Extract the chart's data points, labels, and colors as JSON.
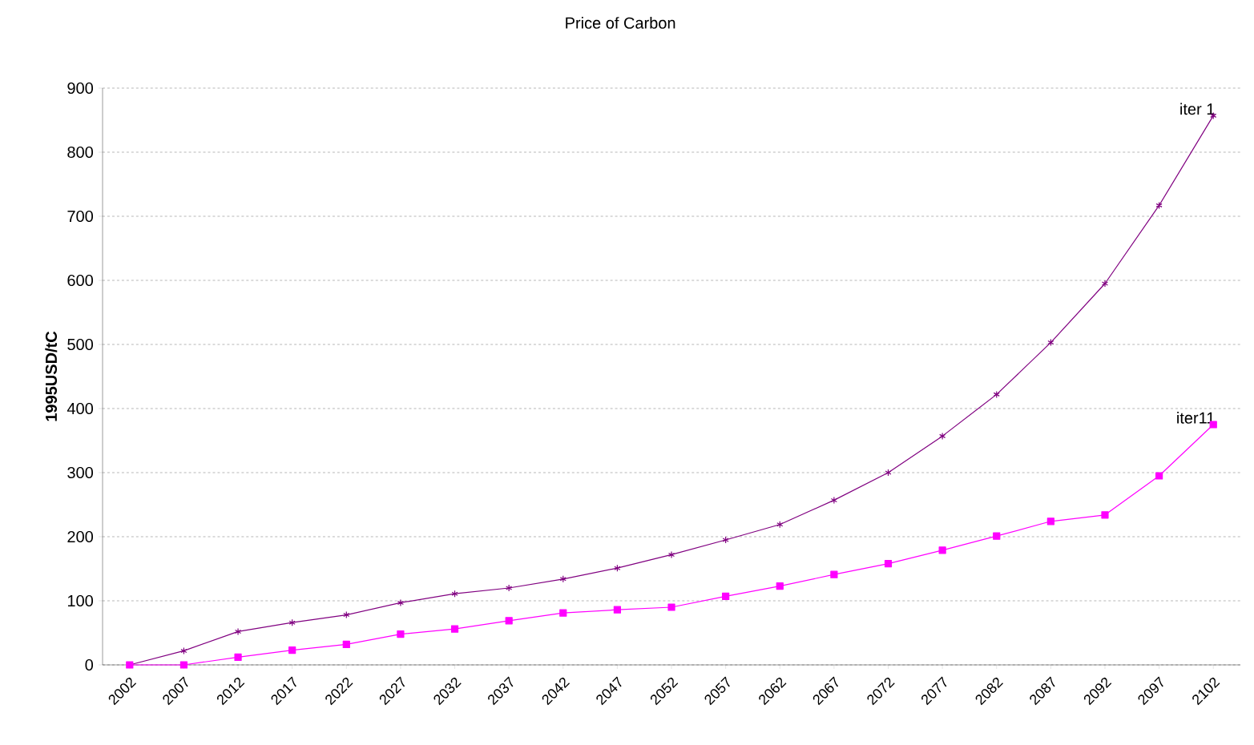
{
  "chart_data": {
    "type": "line",
    "title": "Price of Carbon",
    "ylabel": "**1995USD/tC**",
    "categories": [
      "2002",
      "2007",
      "2012",
      "2017",
      "2022",
      "2027",
      "2032",
      "2037",
      "2042",
      "2047",
      "2052",
      "2057",
      "2062",
      "2067",
      "2072",
      "2077",
      "2082",
      "2087",
      "2092",
      "2097",
      "2102"
    ],
    "series": [
      {
        "name": "iter 1",
        "color": "#800080",
        "marker": "cross",
        "values": [
          0,
          22,
          52,
          66,
          78,
          97,
          111,
          120,
          134,
          151,
          172,
          195,
          219,
          257,
          300,
          357,
          422,
          503,
          595,
          717,
          857
        ]
      },
      {
        "name": "iter11",
        "color": "#ff00ff",
        "marker": "square",
        "values": [
          0,
          0,
          12,
          23,
          32,
          48,
          56,
          69,
          81,
          86,
          90,
          107,
          123,
          141,
          158,
          179,
          201,
          224,
          234,
          295,
          375
        ]
      }
    ],
    "ylim": [
      0,
      900
    ],
    "yticks": [
      0,
      100,
      200,
      300,
      400,
      500,
      600,
      700,
      800,
      900
    ],
    "grid": "y"
  }
}
